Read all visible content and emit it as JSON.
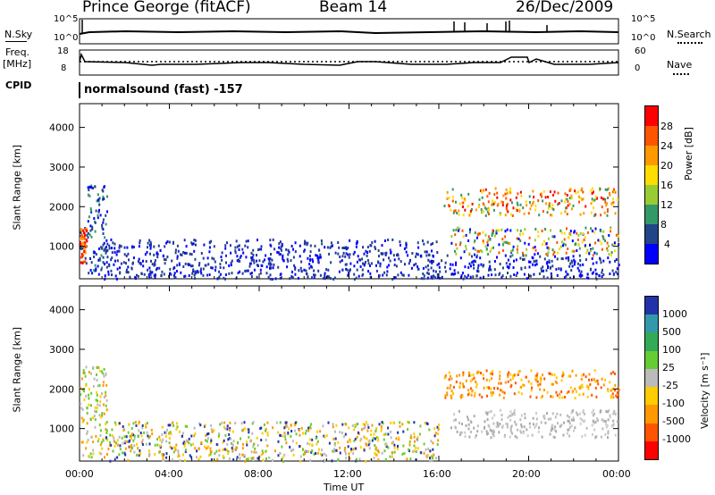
{
  "header": {
    "station": "Prince George (fitACF)",
    "beam": "Beam 14",
    "date": "26/Dec/2009"
  },
  "status_panels": {
    "nsky_label": "N.Sky",
    "nsky_ticks": [
      "10^5",
      "10^0"
    ],
    "nsearch_label": "N.Search",
    "nsearch_ticks": [
      "10^5",
      "10^0"
    ],
    "freq_label": "Freq.",
    "freq_unit": "[MHz]",
    "freq_ticks": [
      "18",
      "8"
    ],
    "nave_label": "Nave",
    "nave_ticks": [
      "60",
      "0"
    ],
    "cpid_label": "CPID",
    "cpid_text": "normalsound (fast) -157"
  },
  "chart_data": [
    {
      "type": "heatmap",
      "title": "",
      "xlabel": "",
      "ylabel": "Slant Range [km]",
      "xlim": [
        "00:00",
        "24:00"
      ],
      "ylim": [
        180,
        4600
      ],
      "yticks": [
        1000,
        2000,
        3000,
        4000
      ],
      "colorbar": {
        "label": "Power [dB]",
        "ticks": [
          "28",
          "24",
          "20",
          "16",
          "12",
          "8",
          "4"
        ],
        "colors": [
          "#ff0000",
          "#ff5500",
          "#ff9900",
          "#ffdd00",
          "#99cc33",
          "#339966",
          "#224488",
          "#0000ff"
        ]
      },
      "regions": [
        {
          "t": [
            0.0,
            0.3
          ],
          "range": [
            600,
            1500
          ],
          "level": "24"
        },
        {
          "t": [
            0.3,
            1.2
          ],
          "range": [
            300,
            2600
          ],
          "level": "8"
        },
        {
          "t": [
            1.0,
            16.0
          ],
          "range": [
            200,
            1200
          ],
          "level": "4-8"
        },
        {
          "t": [
            16.2,
            24.0
          ],
          "range": [
            1800,
            2500
          ],
          "level": "20-28"
        },
        {
          "t": [
            16.5,
            24.0
          ],
          "range": [
            800,
            1500
          ],
          "level": "16-28"
        },
        {
          "t": [
            16.0,
            24.0
          ],
          "range": [
            200,
            800
          ],
          "level": "4"
        }
      ]
    },
    {
      "type": "heatmap",
      "title": "",
      "xlabel": "Time UT",
      "ylabel": "Slant Range [km]",
      "xlim": [
        "00:00",
        "24:00"
      ],
      "xticks": [
        "00:00",
        "04:00",
        "08:00",
        "12:00",
        "16:00",
        "20:00",
        "00:00"
      ],
      "ylim": [
        180,
        4600
      ],
      "yticks": [
        1000,
        2000,
        3000,
        4000
      ],
      "colorbar": {
        "label": "Velocity [m s⁻¹]",
        "ticks": [
          "1000",
          "500",
          "100",
          "25",
          "-25",
          "-100",
          "-500",
          "-1000"
        ],
        "colors": [
          "#2233aa",
          "#3399aa",
          "#33aa55",
          "#66cc33",
          "#bbbbbb",
          "#ffcc00",
          "#ff9900",
          "#ff5500",
          "#ff0000"
        ]
      },
      "regions": [
        {
          "t": [
            0.0,
            1.2
          ],
          "range": [
            300,
            2600
          ],
          "level": "-25 to 25"
        },
        {
          "t": [
            1.0,
            16.0
          ],
          "range": [
            200,
            1200
          ],
          "level": "-100 to 100"
        },
        {
          "t": [
            16.2,
            24.0
          ],
          "range": [
            1800,
            2500
          ],
          "level": "-100 to -500"
        },
        {
          "t": [
            16.5,
            24.0
          ],
          "range": [
            800,
            1500
          ],
          "level": "-25 to 25"
        }
      ]
    }
  ]
}
